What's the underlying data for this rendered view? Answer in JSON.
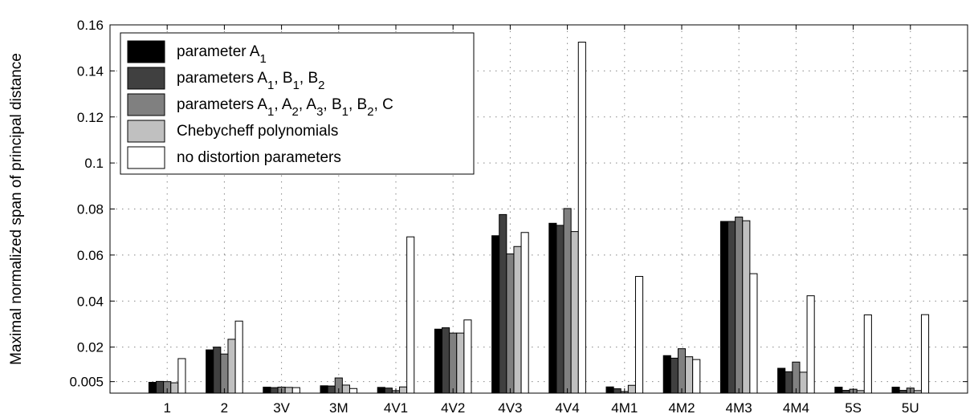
{
  "chart_data": {
    "type": "bar",
    "ylabel": "Maximal normalized span of principal distance",
    "ylim": [
      0,
      0.16
    ],
    "yticks": [
      0.005,
      0.02,
      0.04,
      0.06,
      0.08,
      0.1,
      0.12,
      0.14,
      0.16
    ],
    "ytick_labels": [
      "0.005",
      "0.02",
      "0.04",
      "0.06",
      "0.08",
      "0.1",
      "0.12",
      "0.14",
      "0.16"
    ],
    "grid": true,
    "legend_position": "top-left",
    "categories": [
      "1",
      "2",
      "3V",
      "3M",
      "4V1",
      "4V2",
      "4V3",
      "4V4",
      "4M1",
      "4M2",
      "4M3",
      "4M4",
      "5S",
      "5U"
    ],
    "series": [
      {
        "name": "parameter A1",
        "legend": {
          "text": "parameter A",
          "subs": [
            "1"
          ],
          "after": []
        },
        "color": "#000000",
        "values": [
          0.0047,
          0.0188,
          0.0026,
          0.0032,
          0.0025,
          0.0278,
          0.0684,
          0.0738,
          0.0027,
          0.0163,
          0.0746,
          0.0108,
          0.0026,
          0.0026
        ]
      },
      {
        "name": "parameters A1, B1, B2",
        "legend": {
          "text": "parameters A",
          "subs": [
            "1",
            "1",
            "2"
          ],
          "after": [
            ", B",
            ", B",
            ""
          ]
        },
        "color": "#404040",
        "values": [
          0.0051,
          0.02,
          0.0024,
          0.0031,
          0.0022,
          0.0284,
          0.0776,
          0.0729,
          0.0019,
          0.0152,
          0.0746,
          0.0093,
          0.0012,
          0.0012
        ]
      },
      {
        "name": "parameters A1, A2, A3, B1, B2, C",
        "legend": {
          "text": "parameters A",
          "subs": [
            "1",
            "2",
            "3",
            "1",
            "2"
          ],
          "after": [
            ", A",
            ", A",
            ", B",
            ", B",
            ", C"
          ]
        },
        "color": "#808080",
        "values": [
          0.005,
          0.017,
          0.0026,
          0.0066,
          0.0011,
          0.0261,
          0.0605,
          0.0802,
          0.0007,
          0.0193,
          0.0765,
          0.0135,
          0.0017,
          0.0022
        ]
      },
      {
        "name": "Chebycheff polynomials",
        "legend": {
          "text": "Chebycheff polynomials",
          "subs": [],
          "after": []
        },
        "color": "#c0c0c0",
        "values": [
          0.0045,
          0.0234,
          0.0025,
          0.0035,
          0.0027,
          0.0261,
          0.0637,
          0.0702,
          0.0034,
          0.0158,
          0.0749,
          0.0091,
          0.0011,
          0.0011
        ]
      },
      {
        "name": "no distortion parameters",
        "legend": {
          "text": "no distortion parameters",
          "subs": [],
          "after": []
        },
        "color": "#ffffff",
        "values": [
          0.015,
          0.0313,
          0.0024,
          0.002,
          0.0679,
          0.0318,
          0.0698,
          0.1525,
          0.0507,
          0.0146,
          0.0519,
          0.0423,
          0.034,
          0.0341
        ]
      }
    ]
  }
}
